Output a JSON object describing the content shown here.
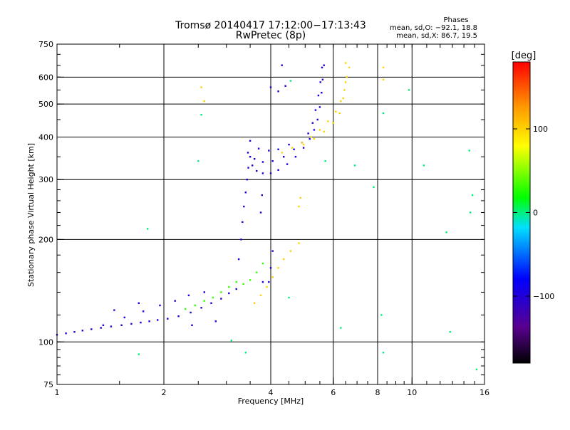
{
  "title": {
    "line1": "Tromsø 20140417 17:12:00−17:13:43",
    "line2": "RwPretec (8p)"
  },
  "stats": {
    "header": "Phases",
    "o_line": "mean, sd,O: −92.1, 18.8",
    "x_line": "mean, sd,X:  86.7, 19.5"
  },
  "chart_data": {
    "type": "scatter",
    "xlabel": "Frequency [MHz]",
    "ylabel": "Stationary phase Virtual Height [km]",
    "xscale": "log",
    "yscale": "log",
    "xlim": [
      1,
      16
    ],
    "ylim": [
      75,
      750
    ],
    "xticks": [
      1,
      2,
      4,
      6,
      8,
      10,
      16
    ],
    "xtick_labels": [
      "1",
      "2",
      "4",
      "6",
      "8",
      "10",
      "16"
    ],
    "xgrid": [
      2,
      4,
      6,
      8,
      10
    ],
    "yticks": [
      75,
      100,
      200,
      300,
      400,
      500,
      600,
      750
    ],
    "ytick_labels": [
      "75",
      "100",
      "200",
      "300",
      "400",
      "500",
      "600",
      "750"
    ],
    "ygrid": [
      100,
      200,
      300,
      400,
      500,
      600
    ],
    "grid": true,
    "colorbar": {
      "label": "[deg]",
      "range": [
        -180,
        180
      ],
      "ticks": [
        -100,
        0,
        100
      ],
      "tick_labels": [
        "−100",
        "0",
        "100"
      ],
      "palette": "rainbow (black→purple→blue→cyan→green→yellow→orange→red)"
    },
    "series": [
      {
        "mode": "O",
        "phase": -100,
        "points": [
          [
            1.0,
            105
          ],
          [
            1.06,
            106
          ],
          [
            1.12,
            107
          ],
          [
            1.18,
            108
          ],
          [
            1.25,
            109
          ],
          [
            1.33,
            110
          ],
          [
            1.42,
            111
          ],
          [
            1.52,
            112
          ],
          [
            1.62,
            113
          ],
          [
            1.72,
            114
          ],
          [
            1.82,
            115
          ],
          [
            1.92,
            116
          ],
          [
            2.05,
            117
          ],
          [
            2.2,
            119
          ],
          [
            2.38,
            122
          ],
          [
            2.55,
            126
          ],
          [
            2.72,
            130
          ],
          [
            2.9,
            134
          ],
          [
            3.05,
            139
          ],
          [
            3.2,
            143
          ],
          [
            3.25,
            175
          ],
          [
            3.3,
            200
          ],
          [
            3.33,
            225
          ],
          [
            3.36,
            250
          ],
          [
            3.4,
            275
          ],
          [
            3.43,
            300
          ],
          [
            3.46,
            325
          ],
          [
            3.5,
            350
          ],
          [
            3.55,
            330
          ],
          [
            3.65,
            318
          ],
          [
            3.8,
            313
          ],
          [
            4.0,
            313
          ],
          [
            4.2,
            320
          ],
          [
            4.45,
            333
          ],
          [
            4.7,
            350
          ],
          [
            4.95,
            372
          ],
          [
            5.15,
            395
          ],
          [
            5.3,
            420
          ],
          [
            5.42,
            450
          ],
          [
            5.5,
            490
          ],
          [
            5.56,
            540
          ],
          [
            5.6,
            590
          ],
          [
            5.65,
            650
          ],
          [
            3.45,
            360
          ],
          [
            3.6,
            345
          ],
          [
            3.8,
            338
          ],
          [
            4.05,
            340
          ],
          [
            4.35,
            350
          ],
          [
            4.65,
            368
          ],
          [
            4.9,
            385
          ],
          [
            5.1,
            410
          ],
          [
            5.25,
            440
          ],
          [
            5.35,
            480
          ],
          [
            5.45,
            530
          ],
          [
            5.52,
            580
          ],
          [
            5.58,
            640
          ],
          [
            3.5,
            390
          ],
          [
            3.7,
            370
          ],
          [
            3.95,
            365
          ],
          [
            4.2,
            368
          ],
          [
            4.5,
            380
          ],
          [
            3.95,
            150
          ],
          [
            4.0,
            165
          ],
          [
            4.05,
            185
          ],
          [
            3.8,
            150
          ],
          [
            3.75,
            240
          ],
          [
            3.78,
            270
          ],
          [
            4.0,
            560
          ],
          [
            4.2,
            545
          ],
          [
            4.4,
            565
          ],
          [
            4.3,
            650
          ],
          [
            1.35,
            112
          ],
          [
            1.55,
            118
          ],
          [
            1.75,
            123
          ],
          [
            1.95,
            128
          ],
          [
            2.15,
            132
          ],
          [
            2.35,
            137
          ],
          [
            2.6,
            140
          ],
          [
            1.45,
            124
          ],
          [
            1.7,
            130
          ],
          [
            2.4,
            112
          ],
          [
            2.8,
            115
          ]
        ]
      },
      {
        "mode": "X",
        "phase": 100,
        "points": [
          [
            3.6,
            130
          ],
          [
            3.75,
            137
          ],
          [
            3.9,
            145
          ],
          [
            4.05,
            155
          ],
          [
            4.2,
            165
          ],
          [
            4.35,
            175
          ],
          [
            4.55,
            185
          ],
          [
            4.8,
            195
          ],
          [
            4.3,
            360
          ],
          [
            4.6,
            372
          ],
          [
            4.9,
            385
          ],
          [
            5.2,
            400
          ],
          [
            5.5,
            420
          ],
          [
            5.8,
            445
          ],
          [
            6.1,
            475
          ],
          [
            6.3,
            510
          ],
          [
            6.45,
            550
          ],
          [
            6.55,
            600
          ],
          [
            6.65,
            640
          ],
          [
            6.5,
            660
          ],
          [
            4.95,
            380
          ],
          [
            5.3,
            395
          ],
          [
            5.65,
            415
          ],
          [
            6.0,
            440
          ],
          [
            6.25,
            470
          ],
          [
            6.4,
            520
          ],
          [
            6.5,
            580
          ],
          [
            4.8,
            250
          ],
          [
            4.85,
            265
          ],
          [
            2.55,
            560
          ],
          [
            2.6,
            510
          ],
          [
            8.3,
            640
          ],
          [
            8.3,
            590
          ]
        ]
      },
      {
        "mode": "transition",
        "phase": 30,
        "points": [
          [
            2.3,
            125
          ],
          [
            2.45,
            128
          ],
          [
            2.6,
            132
          ],
          [
            2.75,
            135
          ],
          [
            2.9,
            140
          ],
          [
            3.05,
            145
          ],
          [
            3.2,
            150
          ],
          [
            3.35,
            148
          ],
          [
            3.5,
            152
          ],
          [
            3.65,
            160
          ],
          [
            3.8,
            170
          ]
        ]
      },
      {
        "mode": "scattered",
        "phase": 0,
        "points": [
          [
            1.7,
            92
          ],
          [
            1.8,
            215
          ],
          [
            2.5,
            340
          ],
          [
            3.1,
            101
          ],
          [
            3.4,
            93
          ],
          [
            4.5,
            135
          ],
          [
            4.55,
            585
          ],
          [
            5.7,
            340
          ],
          [
            6.3,
            110
          ],
          [
            6.9,
            330
          ],
          [
            7.8,
            285
          ],
          [
            8.2,
            120
          ],
          [
            8.3,
            93
          ],
          [
            8.3,
            470
          ],
          [
            9.8,
            550
          ],
          [
            10.8,
            330
          ],
          [
            12.5,
            210
          ],
          [
            12.8,
            107
          ],
          [
            14.5,
            365
          ],
          [
            14.6,
            240
          ],
          [
            14.8,
            270
          ],
          [
            15.2,
            83
          ],
          [
            2.55,
            465
          ]
        ]
      }
    ]
  }
}
